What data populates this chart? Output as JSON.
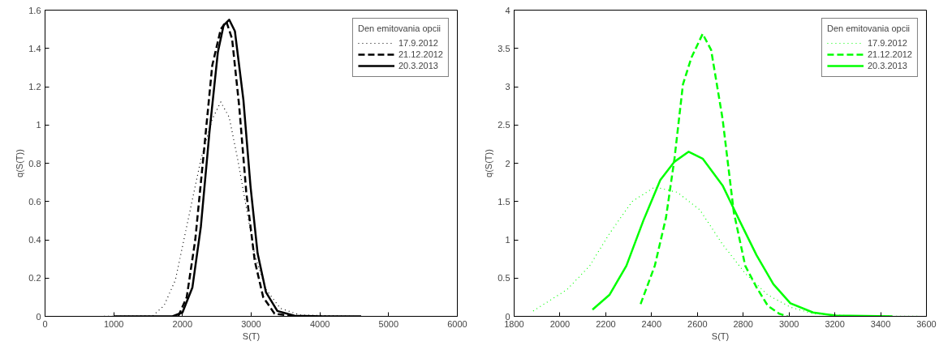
{
  "chart_data": [
    {
      "type": "line",
      "xlabel": "S(T)",
      "ylabel": "q(S(T))",
      "legend_title": "Den emitovania opcii",
      "legend": "top right",
      "grid": false,
      "marker": "none",
      "xlim": [
        0,
        6000
      ],
      "xticks": [
        0,
        1000,
        2000,
        3000,
        4000,
        5000,
        6000
      ],
      "ylim": [
        0,
        1.6
      ],
      "yticks": [
        0,
        0.2,
        0.4,
        0.6,
        0.8,
        1,
        1.2,
        1.4,
        1.6
      ],
      "series": [
        {
          "name": "17.9.2012",
          "color": "#000000",
          "line_style": "dotted",
          "x": [
            800,
            1567,
            1732,
            1897,
            2103,
            2268,
            2433,
            2557,
            2680,
            2804,
            2928,
            3052,
            3216,
            3423,
            3711,
            4500,
            5400
          ],
          "values": [
            0,
            0.003,
            0.056,
            0.19,
            0.54,
            0.82,
            1.03,
            1.12,
            1.04,
            0.82,
            0.57,
            0.32,
            0.14,
            0.042,
            0.007,
            0,
            0
          ]
        },
        {
          "name": "21.12.2012",
          "color": "#000000",
          "line_style": "dashed",
          "x": [
            1938,
            2062,
            2186,
            2309,
            2433,
            2557,
            2639,
            2722,
            2825,
            2928,
            3052,
            3175,
            3340,
            3629
          ],
          "values": [
            0,
            0.1,
            0.4,
            0.85,
            1.31,
            1.5,
            1.54,
            1.45,
            1.1,
            0.65,
            0.29,
            0.1,
            0.014,
            0
          ]
        },
        {
          "name": "20.3.2013",
          "color": "#000000",
          "line_style": "solid",
          "x": [
            1000,
            1856,
            2000,
            2144,
            2268,
            2392,
            2515,
            2598,
            2680,
            2763,
            2887,
            2990,
            3093,
            3216,
            3381,
            3629,
            4041,
            4600
          ],
          "values": [
            0,
            0,
            0.02,
            0.15,
            0.47,
            0.96,
            1.38,
            1.52,
            1.55,
            1.49,
            1.13,
            0.68,
            0.33,
            0.125,
            0.028,
            0.003,
            0,
            0
          ]
        }
      ]
    },
    {
      "type": "line",
      "xlabel": "S(T)",
      "ylabel": "q(S(T))",
      "legend_title": "Den emitovania opcii",
      "legend": "top right",
      "grid": false,
      "marker": "none",
      "xlim": [
        1800,
        3600
      ],
      "xticks": [
        1800,
        2000,
        2200,
        2400,
        2600,
        2800,
        3000,
        3200,
        3400,
        3600
      ],
      "ylim": [
        0,
        4
      ],
      "yticks": [
        0,
        0.5,
        1,
        1.5,
        2,
        2.5,
        3,
        3.5,
        4
      ],
      "series": [
        {
          "name": "17.9.2012",
          "color": "#00ff00",
          "line_style": "dotted",
          "x": [
            1883,
            2031,
            2130,
            2216,
            2315,
            2414,
            2512,
            2611,
            2710,
            2809,
            2907,
            3006,
            3105,
            3265,
            3575
          ],
          "values": [
            0.07,
            0.35,
            0.66,
            1.08,
            1.5,
            1.69,
            1.62,
            1.39,
            0.94,
            0.56,
            0.28,
            0.12,
            0.035,
            0.007,
            0
          ]
        },
        {
          "name": "21.12.2012",
          "color": "#00ff00",
          "line_style": "dashed",
          "x": [
            2352,
            2414,
            2463,
            2500,
            2537,
            2574,
            2623,
            2660,
            2710,
            2759,
            2809,
            2858,
            2907,
            2957,
            2994
          ],
          "values": [
            0.16,
            0.66,
            1.29,
            2.06,
            3.03,
            3.38,
            3.69,
            3.48,
            2.58,
            1.36,
            0.66,
            0.38,
            0.14,
            0.035,
            0
          ]
        },
        {
          "name": "20.3.2013",
          "color": "#00ff00",
          "line_style": "solid",
          "x": [
            2142,
            2216,
            2290,
            2364,
            2438,
            2500,
            2562,
            2623,
            2710,
            2784,
            2858,
            2932,
            3006,
            3105,
            3204,
            3451
          ],
          "values": [
            0.087,
            0.28,
            0.66,
            1.25,
            1.78,
            2.02,
            2.15,
            2.06,
            1.71,
            1.25,
            0.8,
            0.42,
            0.17,
            0.05,
            0.01,
            0
          ]
        }
      ]
    }
  ]
}
